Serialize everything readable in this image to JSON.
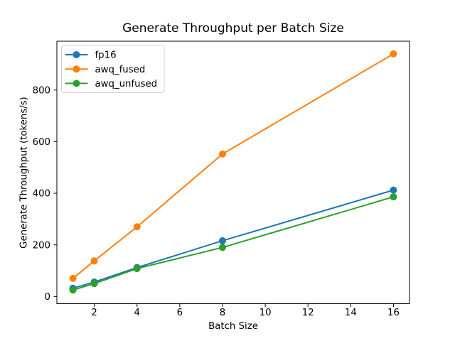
{
  "figure": {
    "background": "#ffffff"
  },
  "chart_data": {
    "type": "line",
    "title": "Generate Throughput per Batch Size",
    "xlabel": "Batch Size",
    "ylabel": "Generate Throughput (tokens/s)",
    "x": [
      1,
      2,
      4,
      8,
      16
    ],
    "series": [
      {
        "name": "fp16",
        "color": "#1f77b4",
        "values": [
          32,
          56,
          112,
          216,
          412
        ]
      },
      {
        "name": "awq_fused",
        "color": "#ff7f0e",
        "values": [
          70,
          138,
          270,
          552,
          940
        ]
      },
      {
        "name": "awq_unfused",
        "color": "#2ca02c",
        "values": [
          25,
          50,
          108,
          190,
          386
        ]
      }
    ],
    "xticks": [
      2,
      4,
      6,
      8,
      10,
      12,
      14,
      16
    ],
    "yticks": [
      0,
      200,
      400,
      600,
      800
    ],
    "xlim": [
      0.25,
      16.75
    ],
    "ylim": [
      -28,
      989
    ],
    "grid": false,
    "marker": "o",
    "legend": {
      "position": "upper left",
      "entries": [
        "fp16",
        "awq_fused",
        "awq_unfused"
      ],
      "border_color": "#cccccc",
      "background": "#ffffff"
    },
    "axis_color": "#000000"
  }
}
